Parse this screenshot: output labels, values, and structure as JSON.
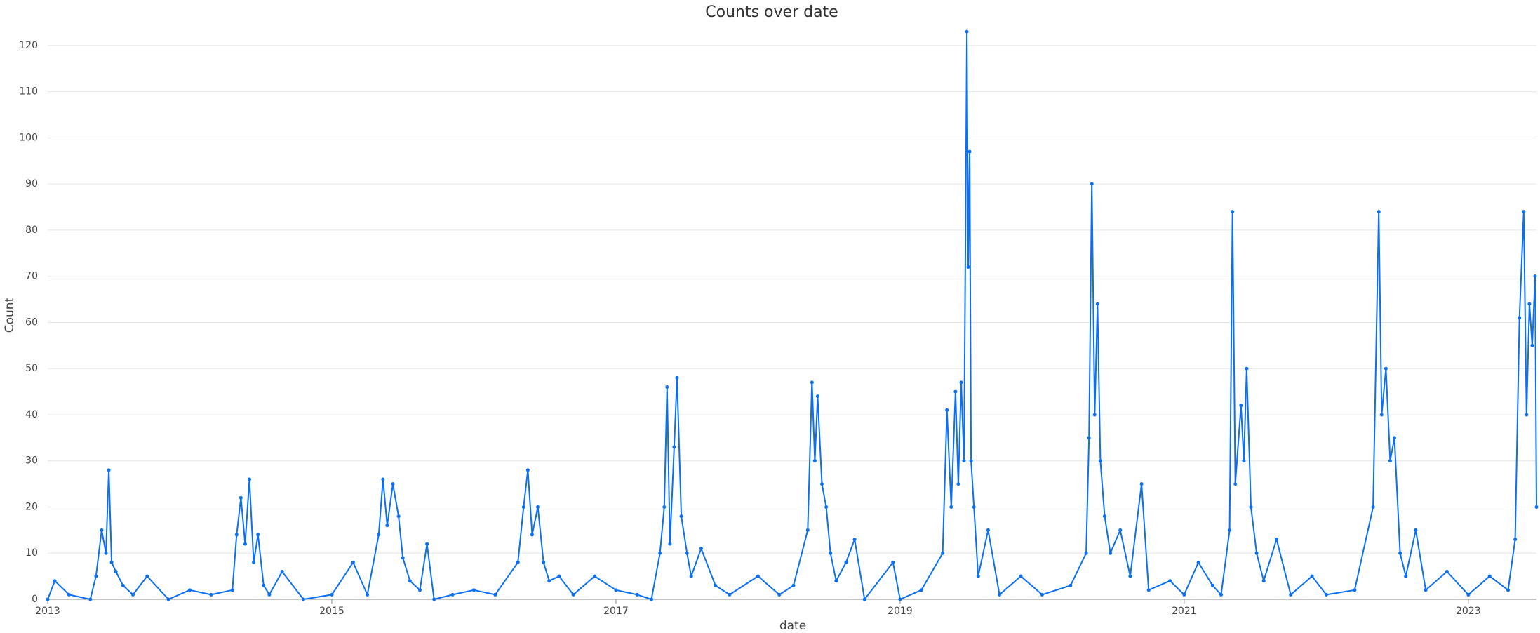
{
  "chart_data": {
    "type": "line",
    "title": "Counts over date",
    "x_label": "date",
    "y_label": "Count",
    "xlim": [
      2013,
      2023.48
    ],
    "xticks": [
      2013,
      2015,
      2017,
      2019,
      2021,
      2023
    ],
    "ylim": [
      0,
      125
    ],
    "yticks": [
      0,
      10,
      20,
      30,
      40,
      50,
      60,
      70,
      80,
      90,
      100,
      110,
      120
    ],
    "grid": true,
    "x": [
      2013.0,
      2013.05,
      2013.15,
      2013.3,
      2013.34,
      2013.38,
      2013.41,
      2013.43,
      2013.45,
      2013.48,
      2013.53,
      2013.6,
      2013.7,
      2013.85,
      2014.0,
      2014.15,
      2014.3,
      2014.33,
      2014.36,
      2014.39,
      2014.42,
      2014.45,
      2014.48,
      2014.52,
      2014.56,
      2014.65,
      2014.8,
      2015.0,
      2015.15,
      2015.25,
      2015.33,
      2015.36,
      2015.39,
      2015.43,
      2015.47,
      2015.5,
      2015.55,
      2015.62,
      2015.67,
      2015.72,
      2015.85,
      2016.0,
      2016.15,
      2016.31,
      2016.35,
      2016.38,
      2016.41,
      2016.45,
      2016.49,
      2016.53,
      2016.6,
      2016.7,
      2016.85,
      2017.0,
      2017.15,
      2017.25,
      2017.31,
      2017.34,
      2017.36,
      2017.38,
      2017.41,
      2017.43,
      2017.46,
      2017.5,
      2017.53,
      2017.6,
      2017.7,
      2017.8,
      2018.0,
      2018.15,
      2018.25,
      2018.35,
      2018.38,
      2018.4,
      2018.42,
      2018.45,
      2018.48,
      2018.51,
      2018.55,
      2018.62,
      2018.68,
      2018.75,
      2018.95,
      2019.0,
      2019.15,
      2019.3,
      2019.33,
      2019.36,
      2019.39,
      2019.41,
      2019.43,
      2019.45,
      2019.47,
      2019.48,
      2019.49,
      2019.5,
      2019.52,
      2019.55,
      2019.62,
      2019.7,
      2019.85,
      2020.0,
      2020.2,
      2020.31,
      2020.33,
      2020.35,
      2020.37,
      2020.39,
      2020.41,
      2020.44,
      2020.48,
      2020.55,
      2020.62,
      2020.7,
      2020.75,
      2020.9,
      2021.0,
      2021.1,
      2021.2,
      2021.26,
      2021.32,
      2021.34,
      2021.36,
      2021.4,
      2021.42,
      2021.44,
      2021.47,
      2021.51,
      2021.56,
      2021.65,
      2021.75,
      2021.9,
      2022.0,
      2022.2,
      2022.33,
      2022.37,
      2022.39,
      2022.42,
      2022.45,
      2022.48,
      2022.52,
      2022.56,
      2022.63,
      2022.7,
      2022.85,
      2023.0,
      2023.15,
      2023.28,
      2023.33,
      2023.36,
      2023.39,
      2023.41,
      2023.43,
      2023.45,
      2023.47,
      2023.48
    ],
    "series": [
      {
        "name": "Count",
        "color": "#0b6ff5",
        "values": [
          0,
          4,
          1,
          0,
          5,
          15,
          10,
          28,
          8,
          6,
          3,
          1,
          5,
          0,
          2,
          1,
          2,
          14,
          22,
          12,
          26,
          8,
          14,
          3,
          1,
          6,
          0,
          1,
          8,
          1,
          14,
          26,
          16,
          25,
          18,
          9,
          4,
          2,
          12,
          0,
          1,
          2,
          1,
          8,
          20,
          28,
          14,
          20,
          8,
          4,
          5,
          1,
          5,
          2,
          1,
          0,
          10,
          20,
          46,
          12,
          33,
          48,
          18,
          10,
          5,
          11,
          3,
          1,
          5,
          1,
          3,
          15,
          47,
          30,
          44,
          25,
          20,
          10,
          4,
          8,
          13,
          0,
          8,
          0,
          2,
          10,
          41,
          20,
          45,
          25,
          47,
          30,
          123,
          72,
          97,
          30,
          20,
          5,
          15,
          1,
          5,
          1,
          3,
          10,
          35,
          90,
          40,
          64,
          30,
          18,
          10,
          15,
          5,
          25,
          2,
          4,
          1,
          8,
          3,
          1,
          15,
          84,
          25,
          42,
          30,
          50,
          20,
          10,
          4,
          13,
          1,
          5,
          1,
          2,
          20,
          84,
          40,
          50,
          30,
          35,
          10,
          5,
          15,
          2,
          6,
          1,
          5,
          2,
          13,
          61,
          84,
          40,
          64,
          55,
          70,
          20
        ]
      }
    ]
  }
}
